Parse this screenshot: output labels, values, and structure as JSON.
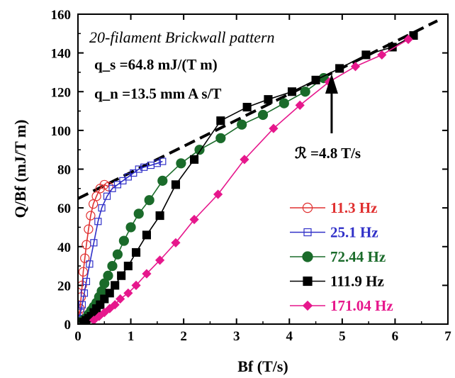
{
  "chart_data": {
    "type": "scatter",
    "title": "",
    "xlabel": "Bf (T/s)",
    "ylabel": "Q/Bf (mJ/T m)",
    "xlim": [
      0,
      7
    ],
    "ylim": [
      0,
      160
    ],
    "xticks": [
      0,
      1,
      2,
      3,
      4,
      5,
      6,
      7
    ],
    "yticks": [
      0,
      20,
      40,
      60,
      80,
      100,
      120,
      140,
      160
    ],
    "grid": false,
    "legend_position": "lower-right",
    "annotations": {
      "pattern_title": "20-filament Brickwall pattern",
      "qs_line": "q_s =64.8 mJ/(T m)",
      "qn_line": "q_n =13.5 mm A s/T",
      "rate_label": "ℛ =4.8 T/s",
      "arrow_x": 4.8
    },
    "fit_line": {
      "style": "dashed",
      "color": "#000000",
      "intercept": 64.8,
      "slope": 13.5,
      "x_range": [
        0,
        6.8
      ]
    },
    "series": [
      {
        "name": "11.3 Hz",
        "color": "#e03030",
        "marker": "circle-open",
        "x": [
          0.02,
          0.04,
          0.06,
          0.08,
          0.1,
          0.13,
          0.16,
          0.2,
          0.24,
          0.29,
          0.35,
          0.42,
          0.5,
          0.58
        ],
        "y": [
          4,
          8,
          14,
          20,
          27,
          34,
          41,
          49,
          56,
          62,
          66,
          70,
          72,
          71
        ]
      },
      {
        "name": "25.1 Hz",
        "color": "#3030c8",
        "marker": "square-open",
        "x": [
          0.02,
          0.05,
          0.08,
          0.12,
          0.16,
          0.22,
          0.3,
          0.38,
          0.45,
          0.55,
          0.65,
          0.75,
          0.85,
          0.95,
          1.05,
          1.15,
          1.25,
          1.38,
          1.5,
          1.6
        ],
        "y": [
          3,
          6,
          10,
          16,
          22,
          31,
          42,
          53,
          60,
          66,
          70,
          72,
          74,
          76,
          78,
          80,
          81,
          82,
          83,
          84
        ]
      },
      {
        "name": "72.44 Hz",
        "color": "#1a6b2a",
        "marker": "circle-filled",
        "x": [
          0.1,
          0.15,
          0.2,
          0.25,
          0.3,
          0.35,
          0.4,
          0.45,
          0.5,
          0.57,
          0.65,
          0.75,
          0.87,
          1.0,
          1.15,
          1.35,
          1.6,
          1.95,
          2.3,
          2.7,
          3.1,
          3.5,
          3.9,
          4.3,
          4.65
        ],
        "y": [
          2,
          3,
          5,
          7,
          9,
          11,
          14,
          17,
          21,
          25,
          30,
          36,
          43,
          50,
          57,
          64,
          74,
          83,
          90,
          96,
          103,
          108,
          114,
          120,
          127
        ]
      },
      {
        "name": "111.9 Hz",
        "color": "#000000",
        "marker": "square-filled",
        "x": [
          0.1,
          0.15,
          0.2,
          0.25,
          0.3,
          0.35,
          0.42,
          0.5,
          0.6,
          0.7,
          0.82,
          0.95,
          1.1,
          1.3,
          1.55,
          1.85,
          2.2,
          2.7,
          3.2,
          3.6,
          4.05,
          4.5,
          4.95,
          5.45,
          5.95,
          6.35
        ],
        "y": [
          1,
          2,
          3,
          4,
          6,
          8,
          10,
          13,
          16,
          20,
          25,
          30,
          37,
          46,
          56,
          72,
          85,
          105,
          112,
          116,
          120,
          126,
          132,
          139,
          143,
          149
        ]
      },
      {
        "name": "171.04 Hz",
        "color": "#e6178c",
        "marker": "diamond-filled",
        "x": [
          0.3,
          0.4,
          0.5,
          0.6,
          0.7,
          0.8,
          0.95,
          1.1,
          1.3,
          1.55,
          1.85,
          2.2,
          2.65,
          3.15,
          3.7,
          4.2,
          4.75,
          5.25,
          5.75,
          6.25
        ],
        "y": [
          2,
          4,
          6,
          8,
          10,
          13,
          16,
          20,
          26,
          33,
          42,
          54,
          67,
          85,
          101,
          113,
          125,
          133,
          139,
          147
        ]
      }
    ]
  }
}
